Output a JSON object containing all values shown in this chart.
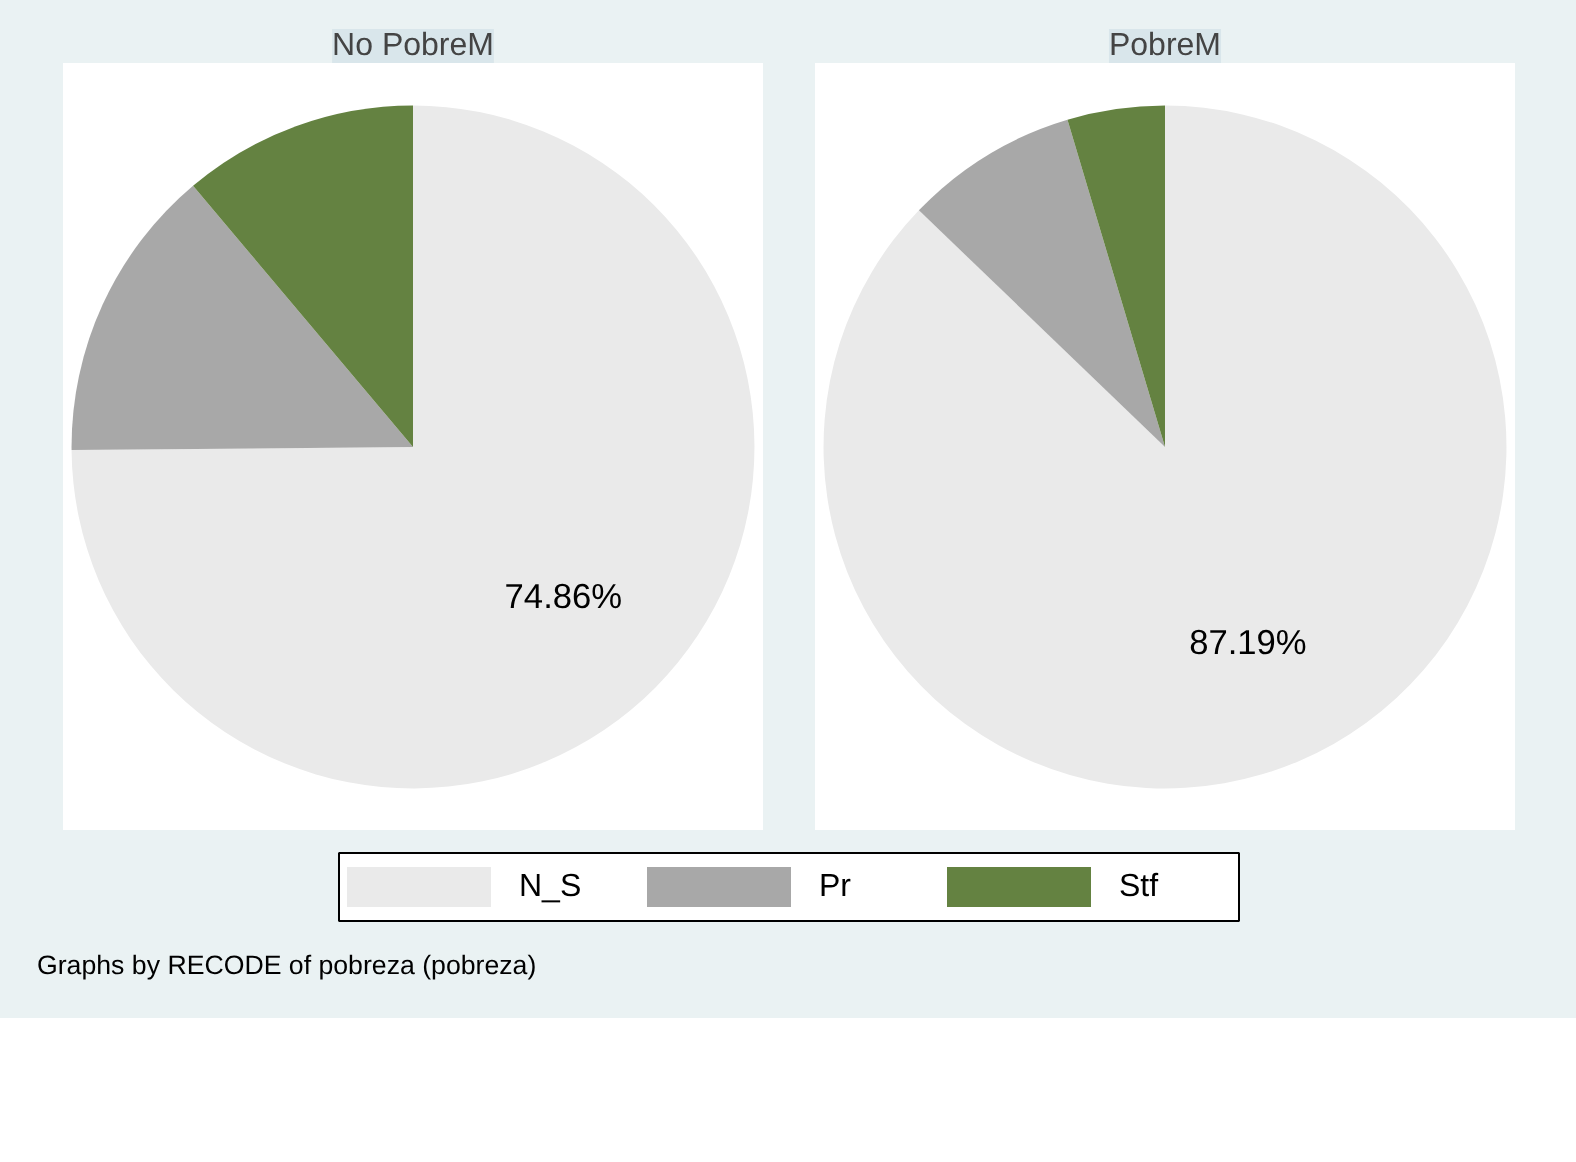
{
  "chart_data": {
    "type": "pie",
    "categories": [
      "N_S",
      "Pr",
      "Stf"
    ],
    "colors": [
      "#eaeaea",
      "#a8a8a8",
      "#648241"
    ],
    "legend": "bottom",
    "annotations": [
      "Graphs by RECODE of pobreza (pobreza)"
    ],
    "series": [
      {
        "name": "No PobreM",
        "values": [
          74.86,
          14.0,
          11.14
        ],
        "value_labels": [
          "74.86%",
          null,
          null
        ]
      },
      {
        "name": "PobreM",
        "values": [
          87.19,
          8.2,
          4.61
        ],
        "value_labels": [
          "87.19%",
          null,
          null
        ]
      }
    ]
  }
}
